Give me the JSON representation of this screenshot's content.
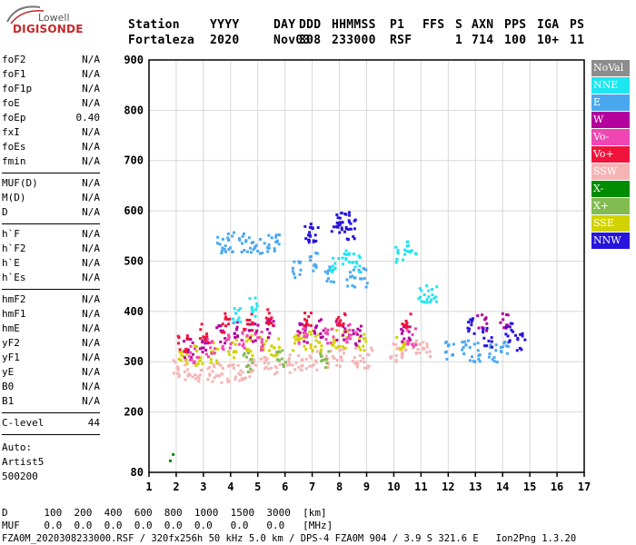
{
  "logo": {
    "top": "Lowell",
    "bottom": "DIGISONDE"
  },
  "header": {
    "labels": [
      "Station",
      "YYYY",
      "DAY",
      "DDD",
      "HHMMSS",
      "P1",
      "FFS",
      "S",
      "AXN",
      "PPS",
      "IGA",
      "PS"
    ],
    "values": [
      "Fortaleza",
      "2020",
      "Nov03",
      "308",
      "233000",
      "RSF",
      "",
      "1",
      "714",
      "100",
      "10+",
      "11"
    ]
  },
  "params": {
    "group1": [
      {
        "name": "foF2",
        "value": "N/A"
      },
      {
        "name": "foF1",
        "value": "N/A"
      },
      {
        "name": "foF1p",
        "value": "N/A"
      },
      {
        "name": "foE",
        "value": "N/A"
      },
      {
        "name": "foEp",
        "value": "0.40"
      },
      {
        "name": "fxI",
        "value": "N/A"
      },
      {
        "name": "foEs",
        "value": "N/A"
      },
      {
        "name": "fmin",
        "value": "N/A"
      }
    ],
    "group2": [
      {
        "name": "MUF(D)",
        "value": "N/A"
      },
      {
        "name": "M(D)",
        "value": "N/A"
      },
      {
        "name": "D",
        "value": "N/A"
      }
    ],
    "group3": [
      {
        "name": "h`F",
        "value": "N/A"
      },
      {
        "name": "h`F2",
        "value": "N/A"
      },
      {
        "name": "h`E",
        "value": "N/A"
      },
      {
        "name": "h`Es",
        "value": "N/A"
      }
    ],
    "group4": [
      {
        "name": "hmF2",
        "value": "N/A"
      },
      {
        "name": "hmF1",
        "value": "N/A"
      },
      {
        "name": "hmE",
        "value": "N/A"
      },
      {
        "name": "yF2",
        "value": "N/A"
      },
      {
        "name": "yF1",
        "value": "N/A"
      },
      {
        "name": "yE",
        "value": "N/A"
      },
      {
        "name": "B0",
        "value": "N/A"
      },
      {
        "name": "B1",
        "value": "N/A"
      }
    ],
    "group5": [
      {
        "name": "C-level",
        "value": "44"
      }
    ]
  },
  "auto": {
    "line1": "Auto:",
    "line2": "Artist5",
    "line3": "500200"
  },
  "bottom": {
    "d_line": "D      100  200  400  600  800  1000  1500  3000  [km]",
    "muf_line": "MUF    0.0  0.0  0.0  0.0  0.0  0.0   0.0   0.0   [MHz]",
    "footer": "FZA0M_2020308233000.RSF / 320fx256h 50 kHz 5.0 km / DPS-4 FZA0M 904 / 3.9 S 321.6 E   Ion2Png 1.3.20"
  },
  "legend": [
    {
      "label": "NoVal",
      "color": "#8c8c8c"
    },
    {
      "label": "NNE",
      "color": "#1ee6f0"
    },
    {
      "label": "E",
      "color": "#4aa8f0"
    },
    {
      "label": "W",
      "color": "#b4009c"
    },
    {
      "label": "Vo-",
      "color": "#f046b4"
    },
    {
      "label": "Vo+",
      "color": "#f0143c"
    },
    {
      "label": "SSW",
      "color": "#f5b4b4"
    },
    {
      "label": "X-",
      "color": "#008c00"
    },
    {
      "label": "X+",
      "color": "#82bc50"
    },
    {
      "label": "SSE",
      "color": "#d2d200"
    },
    {
      "label": "NNW",
      "color": "#2814dc"
    }
  ],
  "chart_data": {
    "type": "scatter",
    "xlabel": "",
    "ylabel": "",
    "xlim": [
      1,
      17
    ],
    "ylim": [
      80,
      900
    ],
    "x_ticks": [
      1,
      2,
      3,
      4,
      5,
      6,
      7,
      8,
      9,
      10,
      11,
      12,
      13,
      14,
      15,
      16,
      17
    ],
    "y_ticks": [
      80,
      200,
      300,
      400,
      500,
      600,
      700,
      800,
      900
    ],
    "grid": true,
    "series": [
      {
        "color": "#f5b4b4",
        "points": [
          [
            2.0,
            290
          ],
          [
            2.4,
            285
          ],
          [
            2.8,
            280
          ],
          [
            3.2,
            278
          ],
          [
            3.6,
            280
          ],
          [
            4.0,
            282
          ],
          [
            4.4,
            285
          ],
          [
            4.8,
            290
          ],
          [
            5.2,
            292
          ],
          [
            5.6,
            295
          ],
          [
            6.2,
            300
          ],
          [
            6.6,
            305
          ],
          [
            7.0,
            305
          ],
          [
            7.6,
            305
          ],
          [
            8.0,
            310
          ],
          [
            8.6,
            310
          ],
          [
            9.0,
            310
          ],
          [
            10.0,
            320
          ],
          [
            10.4,
            325
          ],
          [
            10.8,
            330
          ],
          [
            11.2,
            330
          ]
        ]
      },
      {
        "color": "#d2d200",
        "points": [
          [
            2.2,
            310
          ],
          [
            2.8,
            315
          ],
          [
            3.4,
            320
          ],
          [
            4.0,
            330
          ],
          [
            4.6,
            335
          ],
          [
            5.2,
            340
          ],
          [
            5.6,
            330
          ],
          [
            6.4,
            340
          ],
          [
            6.8,
            345
          ],
          [
            7.2,
            340
          ],
          [
            7.8,
            350
          ],
          [
            8.2,
            345
          ],
          [
            8.8,
            340
          ],
          [
            10.2,
            340
          ]
        ]
      },
      {
        "color": "#b4009c",
        "points": [
          [
            2.4,
            330
          ],
          [
            3.0,
            340
          ],
          [
            3.6,
            355
          ],
          [
            4.2,
            365
          ],
          [
            4.8,
            360
          ],
          [
            5.4,
            370
          ],
          [
            6.6,
            360
          ],
          [
            7.2,
            370
          ],
          [
            8.0,
            365
          ],
          [
            8.6,
            355
          ],
          [
            10.4,
            360
          ],
          [
            13.2,
            380
          ],
          [
            14.0,
            385
          ]
        ]
      },
      {
        "color": "#f046b4",
        "points": [
          [
            2.6,
            320
          ],
          [
            3.2,
            330
          ],
          [
            3.8,
            345
          ],
          [
            4.4,
            350
          ],
          [
            5.0,
            345
          ],
          [
            6.6,
            350
          ],
          [
            7.6,
            355
          ],
          [
            8.4,
            360
          ],
          [
            10.6,
            350
          ]
        ]
      },
      {
        "color": "#f0143c",
        "points": [
          [
            2.2,
            340
          ],
          [
            3.0,
            360
          ],
          [
            3.8,
            380
          ],
          [
            4.6,
            385
          ],
          [
            5.4,
            390
          ],
          [
            6.8,
            380
          ],
          [
            8.0,
            390
          ],
          [
            10.4,
            380
          ]
        ]
      },
      {
        "color": "#4aa8f0",
        "points": [
          [
            3.6,
            535
          ],
          [
            4.0,
            540
          ],
          [
            4.4,
            540
          ],
          [
            4.8,
            540
          ],
          [
            5.2,
            535
          ],
          [
            5.6,
            540
          ],
          [
            6.4,
            490
          ],
          [
            7.0,
            500
          ],
          [
            7.6,
            480
          ],
          [
            8.4,
            470
          ],
          [
            8.8,
            470
          ],
          [
            12.0,
            325
          ],
          [
            12.6,
            325
          ],
          [
            13.0,
            320
          ],
          [
            13.6,
            320
          ],
          [
            14.0,
            325
          ]
        ]
      },
      {
        "color": "#1ee6f0",
        "points": [
          [
            4.2,
            400
          ],
          [
            4.8,
            410
          ],
          [
            7.8,
            500
          ],
          [
            8.2,
            505
          ],
          [
            8.6,
            500
          ],
          [
            10.2,
            520
          ],
          [
            10.6,
            525
          ],
          [
            11.0,
            440
          ],
          [
            11.4,
            440
          ]
        ]
      },
      {
        "color": "#2814dc",
        "points": [
          [
            6.8,
            560
          ],
          [
            7.0,
            555
          ],
          [
            7.8,
            570
          ],
          [
            8.0,
            585
          ],
          [
            8.2,
            580
          ],
          [
            8.4,
            565
          ],
          [
            13.4,
            350
          ],
          [
            14.2,
            360
          ],
          [
            14.6,
            345
          ],
          [
            12.8,
            370
          ]
        ]
      },
      {
        "color": "#82bc50",
        "points": [
          [
            4.6,
            300
          ],
          [
            5.8,
            305
          ],
          [
            7.4,
            310
          ]
        ]
      },
      {
        "color": "#008c00",
        "points": [
          [
            1.7,
            110
          ]
        ]
      }
    ]
  }
}
